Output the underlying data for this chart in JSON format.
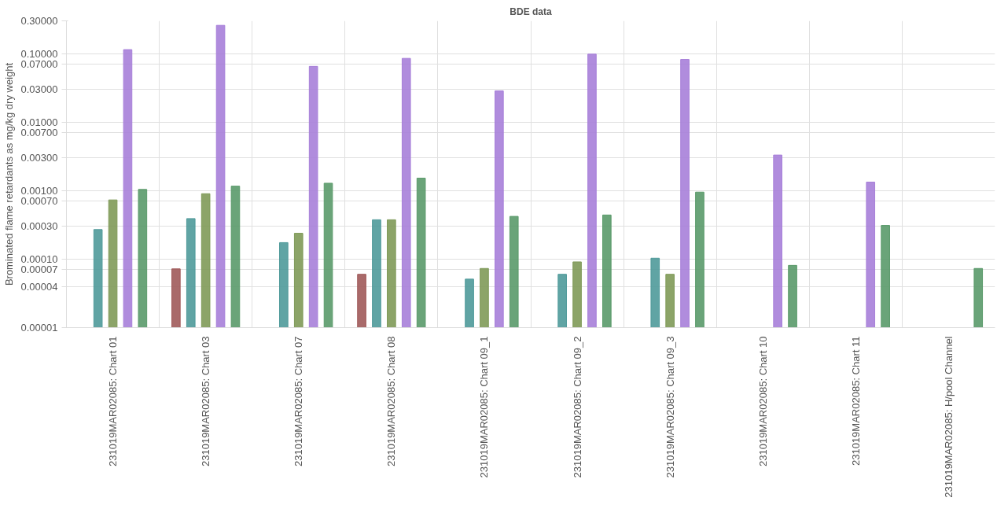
{
  "chart_data": {
    "type": "bar",
    "title": "BDE data",
    "ylabel": "Brominated flame retardants as mg/kg dry weight",
    "log": true,
    "grid": true,
    "categories": [
      "231019MAR02085: Chart 01",
      "231019MAR02085: Chart 03",
      "231019MAR02085: Chart 07",
      "231019MAR02085: Chart 08",
      "231019MAR02085: Chart 09_1",
      "231019MAR02085: Chart 09_2",
      "231019MAR02085: Chart 09_3",
      "231019MAR02085: Chart 10",
      "231019MAR02085: Chart 11",
      "231019MAR02085: H/pool Channel"
    ],
    "ylim": [
      1e-05,
      0.3
    ],
    "yticks": [
      {
        "value": 1e-05,
        "label": "0.00001"
      },
      {
        "value": 4e-05,
        "label": "0.00004"
      },
      {
        "value": 7e-05,
        "label": "0.00007"
      },
      {
        "value": 0.0001,
        "label": "0.00010"
      },
      {
        "value": 0.0003,
        "label": "0.00030"
      },
      {
        "value": 0.0007,
        "label": "0.00070"
      },
      {
        "value": 0.001,
        "label": "0.00100"
      },
      {
        "value": 0.003,
        "label": "0.00300"
      },
      {
        "value": 0.007,
        "label": "0.00700"
      },
      {
        "value": 0.01,
        "label": "0.01000"
      },
      {
        "value": 0.03,
        "label": "0.03000"
      },
      {
        "value": 0.07,
        "label": "0.07000"
      },
      {
        "value": 0.1,
        "label": "0.10000"
      },
      {
        "value": 0.3,
        "label": "0.30000"
      }
    ],
    "series": [
      {
        "color": "#a05a5a",
        "values": [
          null,
          7.2e-05,
          null,
          6e-05,
          null,
          null,
          null,
          null,
          null,
          null
        ]
      },
      {
        "color": "#4f9a9a",
        "values": [
          0.00027,
          0.00039,
          0.000174,
          0.000375,
          5.1e-05,
          6e-05,
          0.000103,
          null,
          null,
          null
        ]
      },
      {
        "color": "#7f9a58",
        "values": [
          0.00073,
          0.0009,
          0.000238,
          0.000375,
          7.3e-05,
          9.1e-05,
          6e-05,
          null,
          null,
          null
        ]
      },
      {
        "color": "#a77fd9",
        "values": [
          0.114,
          0.258,
          0.065,
          0.085,
          0.0285,
          0.098,
          0.082,
          0.0033,
          0.00133,
          null
        ]
      },
      {
        "color": "#5a9a6a",
        "values": [
          0.00104,
          0.00116,
          0.00128,
          0.00152,
          0.00042,
          0.00044,
          0.00095,
          8.1e-05,
          0.00031,
          7.3e-05
        ]
      }
    ]
  }
}
